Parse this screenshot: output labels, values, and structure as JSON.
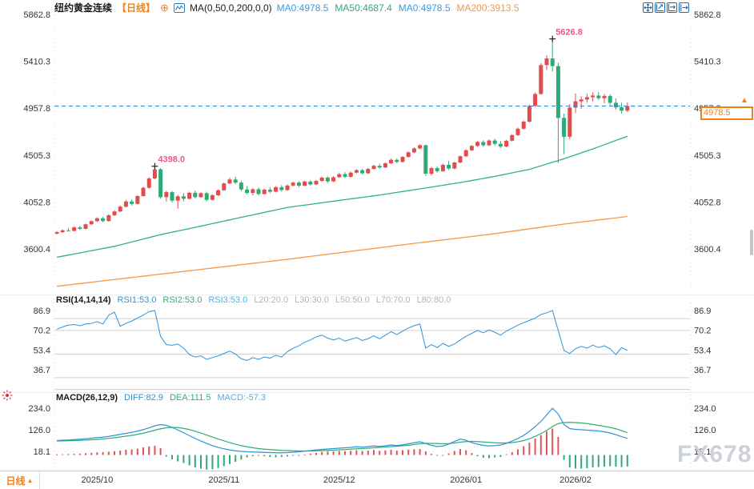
{
  "header": {
    "title": "纽约黄金连续",
    "period_tag": "【日线】",
    "add_icon": "⊕",
    "ma_params": "MA(0,50,0,200,0,0)",
    "ma_values": [
      {
        "label": "MA0:4978.5",
        "color": "#3d9de0"
      },
      {
        "label": "MA50:4687.4",
        "color": "#2fae74"
      },
      {
        "label": "MA0:4978.5",
        "color": "#3d9de0"
      },
      {
        "label": "MA200:3913.5",
        "color": "#f2994a"
      }
    ]
  },
  "price_badge": {
    "value": "4978.5",
    "arrow": "▲",
    "color": "#f28019"
  },
  "bottom_bar": {
    "tab_label": "日线",
    "tab_arrow": "▲"
  },
  "watermark": "FX678",
  "chart_data": [
    {
      "type": "candlestick",
      "title": "纽约黄金连续 日线",
      "ylim": [
        3150,
        5900
      ],
      "y_ticks": [
        "5862.8",
        "5410.3",
        "4957.8",
        "4505.3",
        "4052.8",
        "3600.4"
      ],
      "month_labels": [
        {
          "label": "2025/10",
          "index": 7
        },
        {
          "label": "2025/11",
          "index": 29
        },
        {
          "label": "2025/12",
          "index": 49
        },
        {
          "label": "2026/01",
          "index": 71
        },
        {
          "label": "2026/02",
          "index": 90
        }
      ],
      "last_price": 4978.5,
      "annotations": [
        {
          "label": "4398.0",
          "index": 17,
          "price": 4398.0
        },
        {
          "label": "5626.8",
          "index": 86,
          "price": 5626.8
        }
      ],
      "colors": {
        "up": "#e24c4c",
        "down": "#2dab77",
        "ma50": "#2fb27e",
        "ma200": "#f2994a",
        "price_line": "#1e88e5",
        "annotation": "#f2548c"
      },
      "candles": [
        [
          3748,
          3772,
          3738,
          3762
        ],
        [
          3762,
          3788,
          3755,
          3780
        ],
        [
          3780,
          3802,
          3768,
          3774
        ],
        [
          3774,
          3818,
          3770,
          3808
        ],
        [
          3808,
          3822,
          3782,
          3794
        ],
        [
          3794,
          3845,
          3790,
          3838
        ],
        [
          3838,
          3875,
          3832,
          3868
        ],
        [
          3868,
          3905,
          3860,
          3896
        ],
        [
          3896,
          3910,
          3858,
          3869
        ],
        [
          3869,
          3935,
          3864,
          3925
        ],
        [
          3925,
          3975,
          3918,
          3962
        ],
        [
          3962,
          4020,
          3955,
          4008
        ],
        [
          4008,
          4070,
          4000,
          4058
        ],
        [
          4058,
          4075,
          4018,
          4034
        ],
        [
          4034,
          4120,
          4030,
          4110
        ],
        [
          4110,
          4200,
          4105,
          4190
        ],
        [
          4190,
          4292,
          4182,
          4280
        ],
        [
          4280,
          4398,
          4272,
          4368
        ],
        [
          4368,
          4380,
          4085,
          4100
        ],
        [
          4100,
          4162,
          4058,
          4148
        ],
        [
          4148,
          4158,
          4048,
          4066
        ],
        [
          4066,
          4122,
          3988,
          4108
        ],
        [
          4108,
          4140,
          4060,
          4084
        ],
        [
          4084,
          4152,
          4076,
          4142
        ],
        [
          4142,
          4165,
          4086,
          4100
        ],
        [
          4100,
          4148,
          4094,
          4138
        ],
        [
          4138,
          4152,
          4058,
          4074
        ],
        [
          4074,
          4128,
          4066,
          4118
        ],
        [
          4118,
          4176,
          4110,
          4166
        ],
        [
          4166,
          4242,
          4160,
          4232
        ],
        [
          4232,
          4290,
          4224,
          4270
        ],
        [
          4270,
          4296,
          4226,
          4240
        ],
        [
          4240,
          4256,
          4158,
          4174
        ],
        [
          4174,
          4206,
          4126,
          4140
        ],
        [
          4140,
          4186,
          4118,
          4176
        ],
        [
          4176,
          4192,
          4116,
          4130
        ],
        [
          4130,
          4182,
          4124,
          4172
        ],
        [
          4172,
          4198,
          4138,
          4152
        ],
        [
          4152,
          4206,
          4146,
          4196
        ],
        [
          4196,
          4216,
          4152,
          4168
        ],
        [
          4168,
          4222,
          4160,
          4212
        ],
        [
          4212,
          4250,
          4202,
          4240
        ],
        [
          4240,
          4254,
          4196,
          4210
        ],
        [
          4210,
          4260,
          4204,
          4250
        ],
        [
          4250,
          4264,
          4208,
          4222
        ],
        [
          4222,
          4266,
          4216,
          4256
        ],
        [
          4256,
          4298,
          4248,
          4288
        ],
        [
          4288,
          4300,
          4238,
          4252
        ],
        [
          4252,
          4302,
          4246,
          4292
        ],
        [
          4292,
          4332,
          4284,
          4322
        ],
        [
          4322,
          4342,
          4284,
          4296
        ],
        [
          4296,
          4346,
          4290,
          4336
        ],
        [
          4336,
          4370,
          4328,
          4360
        ],
        [
          4360,
          4372,
          4318,
          4330
        ],
        [
          4330,
          4382,
          4324,
          4372
        ],
        [
          4372,
          4412,
          4364,
          4402
        ],
        [
          4402,
          4422,
          4374,
          4386
        ],
        [
          4386,
          4436,
          4380,
          4426
        ],
        [
          4426,
          4472,
          4418,
          4460
        ],
        [
          4460,
          4476,
          4428,
          4440
        ],
        [
          4440,
          4496,
          4434,
          4488
        ],
        [
          4488,
          4542,
          4480,
          4532
        ],
        [
          4532,
          4580,
          4524,
          4570
        ],
        [
          4570,
          4610,
          4562,
          4600
        ],
        [
          4600,
          4608,
          4305,
          4326
        ],
        [
          4326,
          4392,
          4312,
          4380
        ],
        [
          4380,
          4396,
          4336,
          4350
        ],
        [
          4350,
          4422,
          4344,
          4412
        ],
        [
          4412,
          4450,
          4362,
          4376
        ],
        [
          4376,
          4442,
          4368,
          4434
        ],
        [
          4434,
          4502,
          4426,
          4494
        ],
        [
          4494,
          4562,
          4486,
          4552
        ],
        [
          4552,
          4602,
          4544,
          4594
        ],
        [
          4594,
          4642,
          4586,
          4632
        ],
        [
          4632,
          4650,
          4586,
          4600
        ],
        [
          4600,
          4656,
          4592,
          4646
        ],
        [
          4646,
          4664,
          4598,
          4614
        ],
        [
          4614,
          4640,
          4572,
          4588
        ],
        [
          4588,
          4652,
          4580,
          4644
        ],
        [
          4644,
          4708,
          4636,
          4698
        ],
        [
          4698,
          4770,
          4690,
          4760
        ],
        [
          4760,
          4838,
          4752,
          4828
        ],
        [
          4828,
          4992,
          4820,
          4980
        ],
        [
          4980,
          5108,
          4972,
          5095
        ],
        [
          5095,
          5392,
          5088,
          5374
        ],
        [
          5374,
          5468,
          5326,
          5438
        ],
        [
          5438,
          5626.8,
          5312,
          5364
        ],
        [
          5364,
          5396,
          4428,
          4864
        ],
        [
          4864,
          4906,
          4516,
          4682
        ],
        [
          4682,
          4998,
          4656,
          4964
        ],
        [
          4964,
          5100,
          4910,
          5024
        ],
        [
          5024,
          5074,
          4952,
          5042
        ],
        [
          5042,
          5096,
          5010,
          5064
        ],
        [
          5064,
          5110,
          5024,
          5080
        ],
        [
          5080,
          5114,
          5036,
          5054
        ],
        [
          5054,
          5094,
          5004,
          5076
        ],
        [
          5076,
          5092,
          4986,
          5010
        ],
        [
          5010,
          5054,
          4944,
          4966
        ],
        [
          4966,
          5012,
          4906,
          4934
        ],
        [
          4934,
          5014,
          4920,
          4978.5
        ]
      ],
      "ma50_anchors": [
        [
          0,
          3520
        ],
        [
          10,
          3625
        ],
        [
          18,
          3738
        ],
        [
          25,
          3820
        ],
        [
          32,
          3905
        ],
        [
          40,
          4000
        ],
        [
          49,
          4068
        ],
        [
          56,
          4120
        ],
        [
          64,
          4188
        ],
        [
          70,
          4240
        ],
        [
          76,
          4300
        ],
        [
          82,
          4368
        ],
        [
          88,
          4470
        ],
        [
          93,
          4565
        ],
        [
          99,
          4687
        ]
      ],
      "ma200_anchors": [
        [
          0,
          3240
        ],
        [
          20,
          3370
        ],
        [
          40,
          3500
        ],
        [
          60,
          3640
        ],
        [
          75,
          3740
        ],
        [
          88,
          3840
        ],
        [
          99,
          3913
        ]
      ]
    },
    {
      "type": "line",
      "name": "RSI",
      "params_label": "RSI(14,14,14)",
      "legend": [
        {
          "label": "RSI1:53.0",
          "color": "#2e93d9"
        },
        {
          "label": "RSI2:53.0",
          "color": "#2fae74"
        },
        {
          "label": "RSI3:53.0",
          "color": "#42b4e6"
        },
        {
          "label": "L20:20.0",
          "color": "#b4b4b4"
        },
        {
          "label": "L30:30.0",
          "color": "#b4b4b4"
        },
        {
          "label": "L50:50.0",
          "color": "#b4b4b4"
        },
        {
          "label": "L70:70.0",
          "color": "#b4b4b4"
        },
        {
          "label": "L80:80.0",
          "color": "#b4b4b4"
        }
      ],
      "ylim": [
        18,
        92
      ],
      "y_ticks": [
        "86.9",
        "70.2",
        "53.4",
        "36.7"
      ],
      "levels": [
        80,
        70,
        50,
        30,
        20
      ],
      "values": [
        71,
        73,
        74.5,
        75,
        74,
        75.5,
        76,
        77.5,
        75.5,
        83,
        85.5,
        73.5,
        76,
        78,
        80.5,
        83,
        86,
        86.9,
        65,
        58,
        57.5,
        58.5,
        55,
        49.5,
        47.5,
        48.5,
        45.5,
        47,
        48.5,
        50.5,
        52.5,
        50,
        46,
        44.5,
        47,
        45.5,
        47.5,
        46.5,
        49,
        47.5,
        52,
        55,
        57,
        60,
        62,
        64.5,
        66,
        63.5,
        62,
        63.5,
        61,
        62.5,
        64,
        61.5,
        63,
        65.5,
        63,
        66,
        69,
        66.5,
        69.5,
        72,
        74,
        75.5,
        55,
        58,
        55.5,
        59,
        56.5,
        58.5,
        62,
        65,
        67.5,
        70,
        68,
        70.5,
        68.5,
        66,
        69.5,
        72,
        74.5,
        76.5,
        78.5,
        80.5,
        83.5,
        85,
        86.9,
        70,
        53,
        50.5,
        54.5,
        56.5,
        55,
        57.5,
        55.5,
        57,
        54.5,
        49.5,
        55.5,
        53
      ]
    },
    {
      "type": "macd",
      "params_label": "MACD(26,12,9)",
      "legend": [
        {
          "label": "DIFF:82.9",
          "color": "#2e93d9"
        },
        {
          "label": "DEA:111.5",
          "color": "#2fae74"
        },
        {
          "label": "MACD:-57.3",
          "color": "#42b4e6"
        }
      ],
      "ylim": [
        -75,
        250
      ],
      "y_ticks": [
        "234.0",
        "126.0",
        "18.1"
      ],
      "colors": {
        "diff": "#2e93d9",
        "dea": "#2fae74",
        "hist_up": "#e05555",
        "hist_down": "#2dab77"
      },
      "diff": [
        72,
        74,
        75,
        77,
        79,
        81,
        84,
        87,
        89,
        93,
        98,
        103,
        108,
        113,
        119,
        127,
        136,
        146,
        152,
        148,
        138,
        125,
        111,
        97,
        83,
        70,
        58,
        47,
        38,
        31,
        25,
        21,
        18,
        16,
        15,
        14,
        13,
        12,
        11,
        11,
        12,
        14,
        16,
        19,
        22,
        25,
        28,
        30,
        32,
        34,
        36,
        38,
        41,
        39,
        42,
        45,
        43,
        46,
        50,
        47,
        51,
        56,
        61,
        66,
        58,
        48,
        42,
        45,
        55,
        68,
        80,
        74,
        62,
        54,
        48,
        45,
        47,
        50,
        58,
        70,
        82,
        98,
        118,
        142,
        168,
        200,
        233,
        205,
        152,
        132,
        128,
        126,
        124,
        122,
        120,
        116,
        110,
        102,
        92,
        82.9
      ],
      "dea": [
        70,
        70.5,
        71,
        72,
        73,
        74.5,
        76,
        78,
        80,
        83,
        86,
        90,
        94,
        98,
        103,
        109,
        116,
        124,
        131,
        136,
        138,
        137,
        133,
        127,
        119,
        110,
        100,
        90,
        80,
        71,
        62,
        54,
        47,
        41,
        36,
        32,
        29,
        27,
        25,
        23,
        22,
        21,
        20,
        20,
        20,
        21,
        22,
        23,
        24,
        26,
        27,
        29,
        31,
        32,
        34,
        36,
        38,
        40,
        42,
        44,
        46,
        49,
        52,
        56,
        58,
        58,
        57,
        56,
        57,
        60,
        64,
        67,
        68,
        67,
        65,
        63,
        61,
        60,
        60,
        62,
        66,
        72,
        81,
        93,
        107,
        123,
        142,
        157,
        162,
        163,
        162,
        160,
        157,
        153,
        148,
        143,
        138,
        131,
        122,
        111.5
      ],
      "hist": [
        3,
        4,
        5,
        6,
        7,
        9,
        11,
        13,
        14,
        16,
        19,
        22,
        26,
        28,
        32,
        38,
        43,
        46,
        34,
        -8,
        -22,
        -32,
        -40,
        -52,
        -62,
        -68,
        -73,
        -71,
        -65,
        -56,
        -45,
        -34,
        -23,
        -12,
        -6,
        -3,
        -6,
        -10,
        -12,
        -10,
        -7,
        -4,
        -1,
        3,
        7,
        11,
        15,
        17,
        18,
        20,
        19,
        21,
        24,
        20,
        22,
        25,
        21,
        23,
        26,
        22,
        24,
        27,
        29,
        30,
        18,
        6,
        -4,
        -2,
        8,
        20,
        30,
        24,
        10,
        -6,
        -14,
        -16,
        -12,
        -10,
        4,
        14,
        28,
        44,
        62,
        82,
        100,
        118,
        132,
        90,
        -24,
        -62,
        -68,
        -68,
        -66,
        -62,
        -60,
        -58,
        -56,
        -58,
        -60,
        -57.3
      ]
    }
  ]
}
